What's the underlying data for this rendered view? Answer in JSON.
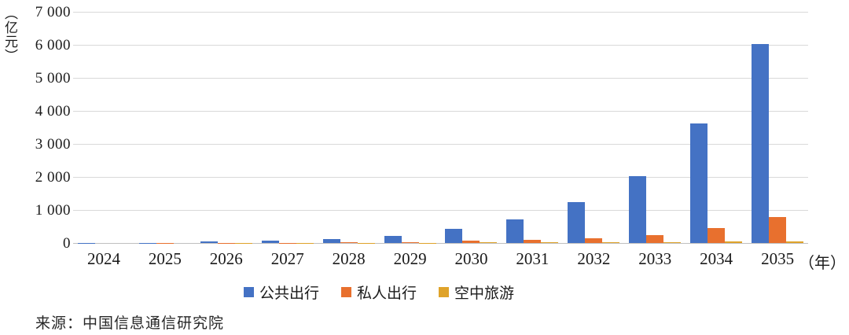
{
  "chart_data": {
    "type": "bar",
    "title": "",
    "y_unit_label": "（亿元）",
    "x_unit_label": "（年）",
    "categories": [
      "2024",
      "2025",
      "2026",
      "2027",
      "2028",
      "2029",
      "2030",
      "2031",
      "2032",
      "2033",
      "2034",
      "2035"
    ],
    "series": [
      {
        "name": "公共出行",
        "key": "public-travel",
        "color": "#4472C4",
        "values": [
          2,
          10,
          40,
          70,
          115,
          225,
          420,
          720,
          1230,
          2030,
          3630,
          6020
        ]
      },
      {
        "name": "私人出行",
        "key": "private-travel",
        "color": "#E8702E",
        "values": [
          1,
          3,
          6,
          10,
          15,
          25,
          80,
          95,
          140,
          230,
          450,
          780
        ]
      },
      {
        "name": "空中旅游",
        "key": "air-tourism",
        "color": "#DFA32A",
        "values": [
          0.5,
          1,
          2,
          4,
          6,
          10,
          15,
          20,
          25,
          30,
          40,
          50
        ]
      }
    ],
    "ylim": [
      0,
      7000
    ],
    "ytick_interval": 1000,
    "ytick_labels": [
      "0",
      "1 000",
      "2 000",
      "3 000",
      "4 000",
      "5 000",
      "6 000",
      "7 000"
    ],
    "grid": true,
    "legend_position": "bottom",
    "gridline_color": "#D9D9D9",
    "axis_line_color": "#BFBFBF"
  },
  "source": {
    "label": "来源：中国信息通信研究院"
  }
}
